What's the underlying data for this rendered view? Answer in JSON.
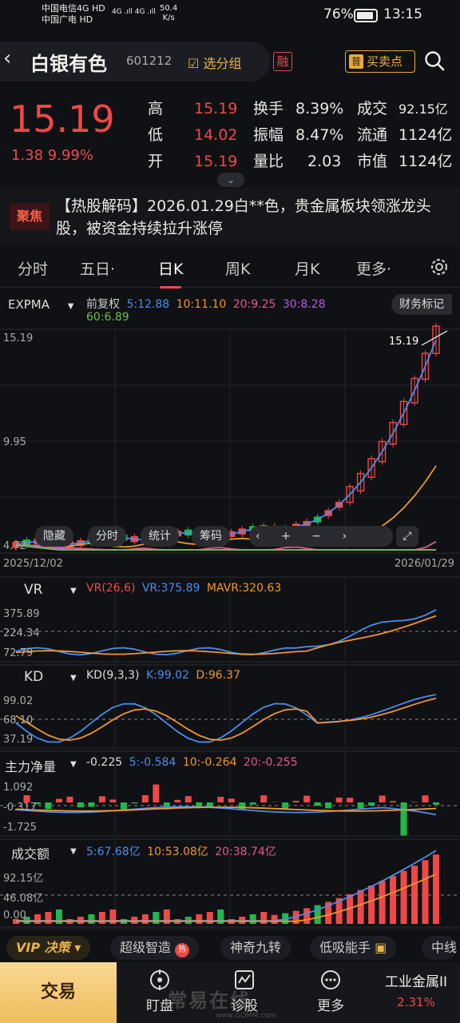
{
  "status_bar": {
    "carrier1": "中国电信4G HD",
    "carrier2": "中国广电 HD",
    "signal": "4G .ıll 4G .ıll",
    "speed": "50.4",
    "speed_unit": "K/s",
    "battery": "76%",
    "time": "13:15"
  },
  "header": {
    "name": "白银有色",
    "code": "601212",
    "add_group": "选分组",
    "rong": "融",
    "buysell_icon": "普",
    "buysell": "买卖点"
  },
  "quote": {
    "price": "15.19",
    "change": "1.38  9.99%",
    "rows": [
      {
        "l1": "高",
        "v1": "15.19",
        "l2": "换手",
        "v2": "8.39%",
        "l3": "成交",
        "v3": "92.15亿"
      },
      {
        "l1": "低",
        "v1": "14.02",
        "l2": "振幅",
        "v2": "8.47%",
        "l3": "流通",
        "v3": "1124亿"
      },
      {
        "l1": "开",
        "v1": "15.19",
        "l2": "量比",
        "v2": "2.03",
        "l3": "市值",
        "v3": "1124亿"
      }
    ],
    "expand": "⌄"
  },
  "news": {
    "tag": "聚焦",
    "text": "【热股解码】2026.01.29白**色，贵金属板块领涨龙头股，被资金持续拉升涨停"
  },
  "tabs": [
    "分时",
    "五日·",
    "日K",
    "周K",
    "月K",
    "更多·"
  ],
  "active_tab": 2,
  "main_chart": {
    "indicator": "EXPMA",
    "adjust": "前复权",
    "ma5": "5:12.88",
    "ma10": "10:11.10",
    "ma20": "20:9.25",
    "ma30": "30:8.28",
    "ma60": "60:6.89",
    "finance_mark": "财务标记",
    "y_top": "15.19",
    "y_mid": "9.95",
    "y_bot": "4.72",
    "last_label": "15.19",
    "date_start": "2025/12/02",
    "date_end": "2026/01/29",
    "buttons": [
      "隐藏",
      "分时",
      "统计",
      "筹码"
    ],
    "colors": {
      "ma5": "#4a8cf0",
      "ma10": "#f0962c",
      "ma20": "#e05a8c",
      "ma30": "#b45ce8",
      "ma60": "#6cc04a"
    }
  },
  "vr": {
    "name": "VR",
    "params": "VR(26,6)",
    "vr": "VR:375.89",
    "mavr": "MAVR:320.63",
    "y1": "375.89",
    "y2": "224.34",
    "y3": "72.79"
  },
  "kd": {
    "name": "KD",
    "params": "KD(9,3,3)",
    "k": "K:99.02",
    "d": "D:96.37",
    "y1": "99.02",
    "y2": "68.10",
    "y3": "37.19"
  },
  "flow": {
    "name": "主力净量",
    "v": "-0.225",
    "m5": "5:-0.584",
    "m10": "10:-0.264",
    "m20": "20:-0.255",
    "y1": "1.092",
    "y2": "-0.317",
    "y3": "-1.725"
  },
  "amount": {
    "name": "成交额",
    "m5": "5:67.68亿",
    "m10": "10:53.08亿",
    "m20": "20:38.74亿",
    "y1": "92.15亿",
    "y2": "46.08亿",
    "y3": "0.00"
  },
  "features": [
    "VIP 决策 ▾",
    "超级智造",
    "神奇九转",
    "低吸能手",
    "中线"
  ],
  "nav": {
    "trade": "交易",
    "items": [
      "盯盘",
      "诊股",
      "更多"
    ],
    "industry": "工业金属II",
    "industry_pct": "2.31%"
  },
  "watermark": "常易在线",
  "watermark_url": "www.GDMM.com"
}
